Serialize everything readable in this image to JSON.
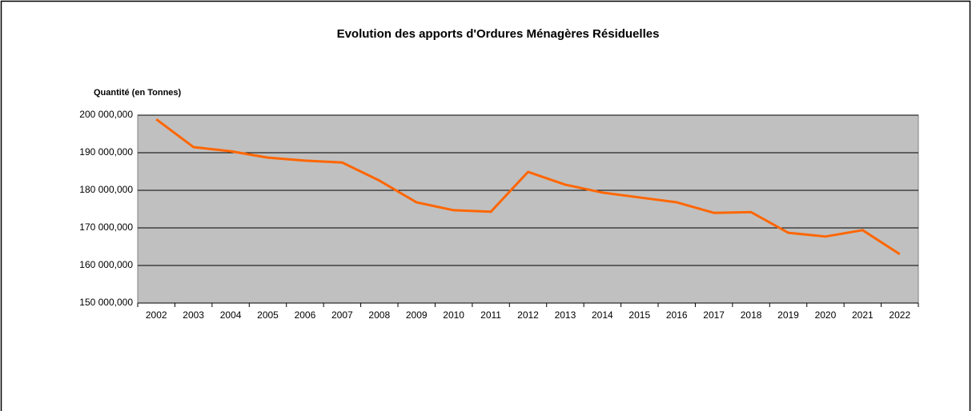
{
  "chart_data": {
    "type": "line",
    "title": "Evolution des apports d'Ordures Ménagères Résiduelles",
    "y_label": "Quantité (en Tonnes)",
    "categories": [
      "2002",
      "2003",
      "2004",
      "2005",
      "2006",
      "2007",
      "2008",
      "2009",
      "2010",
      "2011",
      "2012",
      "2013",
      "2014",
      "2015",
      "2016",
      "2017",
      "2018",
      "2019",
      "2020",
      "2021",
      "2022"
    ],
    "series": [
      {
        "name": "Quantité",
        "color": "#ff6600",
        "values": [
          198900,
          191500,
          190400,
          188700,
          187900,
          187400,
          182600,
          176800,
          174700,
          174300,
          184900,
          181500,
          179400,
          178100,
          176800,
          174000,
          174200,
          168700,
          167700,
          169400,
          163000
        ]
      }
    ],
    "ylim": [
      150000,
      200000
    ],
    "yticks": [
      {
        "value": 150000,
        "label": "150 000,000"
      },
      {
        "value": 160000,
        "label": "160 000,000"
      },
      {
        "value": 170000,
        "label": "170 000,000"
      },
      {
        "value": 180000,
        "label": "180 000,000"
      },
      {
        "value": 190000,
        "label": "190 000,000"
      },
      {
        "value": 200000,
        "label": "200 000,000"
      }
    ],
    "grid": true,
    "background": "#c0c0c0"
  }
}
